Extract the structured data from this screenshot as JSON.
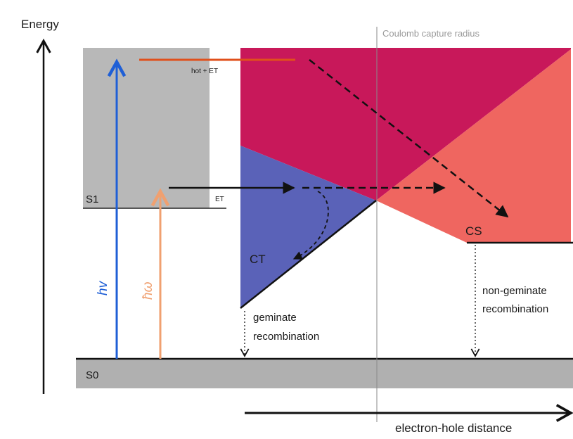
{
  "labels": {
    "energy_axis": "Energy",
    "coulomb_radius": "Coulomb capture radius",
    "hot_et": "hot + ET",
    "s1": "S1",
    "s0": "S0",
    "et": "ET",
    "ct": "CT",
    "cs": "CS",
    "hv": "hv",
    "geminate_line1": "geminate",
    "geminate_line2": "recombination",
    "nongeminate_line1": "non-geminate",
    "nongeminate_line2": "recombination",
    "distance_axis": "electron-hole distance"
  },
  "colors": {
    "upper_band": "#c8185a",
    "ct_region": "#5a62b8",
    "cs_region": "#ef6660",
    "s1_box": "#b8b8b8",
    "s0_band": "#b0b0b0",
    "hv_arrow": "#1f5fd6",
    "low_energy_arrow": "#f0a070",
    "hot_state_line": "#e0501c"
  }
}
